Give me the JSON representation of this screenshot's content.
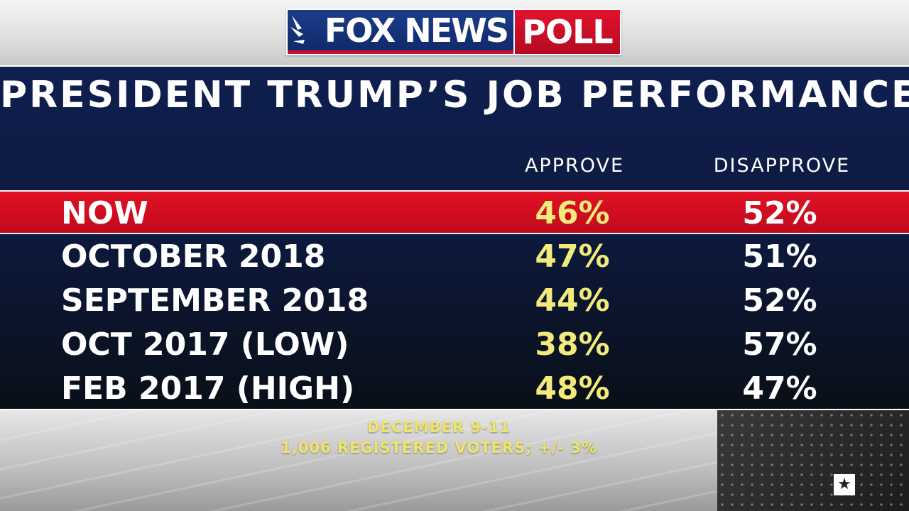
{
  "logo": {
    "brand": "FOX NEWS",
    "tag": "POLL"
  },
  "chart_data": {
    "type": "table",
    "title": "PRESIDENT TRUMP’S JOB PERFORMANCE",
    "columns": [
      "APPROVE",
      "DISAPPROVE"
    ],
    "rows": [
      {
        "label": "NOW",
        "approve": "46%",
        "disapprove": "52%",
        "highlighted": true
      },
      {
        "label": "OCTOBER 2018",
        "approve": "47%",
        "disapprove": "51%",
        "highlighted": false
      },
      {
        "label": "SEPTEMBER 2018",
        "approve": "44%",
        "disapprove": "52%",
        "highlighted": false
      },
      {
        "label": "OCT 2017 (LOW)",
        "approve": "38%",
        "disapprove": "57%",
        "highlighted": false
      },
      {
        "label": "FEB 2017 (HIGH)",
        "approve": "48%",
        "disapprove": "47%",
        "highlighted": false
      }
    ],
    "approve_values": [
      46,
      47,
      44,
      38,
      48
    ],
    "disapprove_values": [
      52,
      51,
      52,
      57,
      47
    ]
  },
  "footnote": {
    "dates": "DECEMBER 9-11",
    "sample": "1,006 REGISTERED VOTERS; +/- 3%"
  },
  "colors": {
    "panel_navy": "#0f1f4f",
    "highlight_red": "#d20f22",
    "approve_yellow": "#f2ea7a",
    "brand_blue": "#1b3d8c",
    "brand_red": "#c8102e"
  }
}
